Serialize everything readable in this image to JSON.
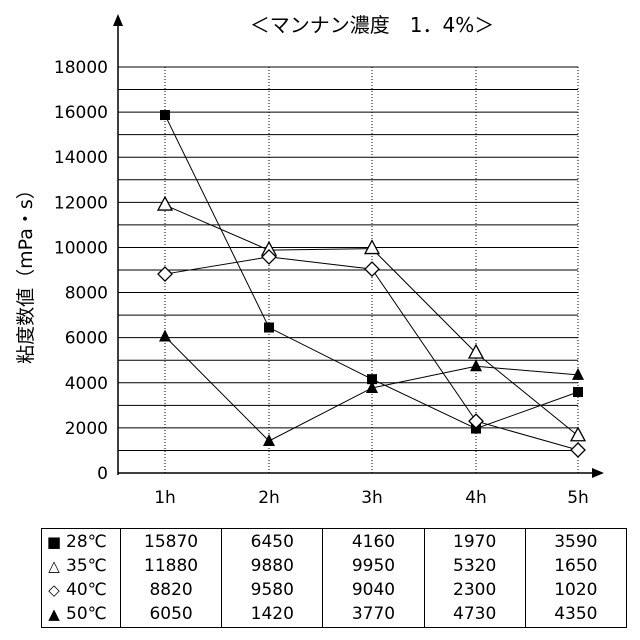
{
  "chart_data": {
    "type": "line",
    "title": "＜マンナン濃度　1．4%＞",
    "ylabel": "粘度数値（mPa・s）",
    "xlabel": "",
    "categories": [
      "1h",
      "2h",
      "3h",
      "4h",
      "5h"
    ],
    "ylim": [
      0,
      18000
    ],
    "yticks": [
      0,
      2000,
      4000,
      6000,
      8000,
      10000,
      12000,
      14000,
      16000,
      18000
    ],
    "grid": {
      "horizontal": "solid",
      "vertical": "dotted"
    },
    "series": [
      {
        "name": "28°C",
        "marker": "filled-square",
        "values": [
          15870,
          6450,
          4160,
          1970,
          3590
        ]
      },
      {
        "name": "35°C",
        "marker": "open-triangle",
        "values": [
          11880,
          9880,
          9950,
          5320,
          1650
        ]
      },
      {
        "name": "40°C",
        "marker": "open-diamond",
        "values": [
          8820,
          9580,
          9040,
          2300,
          1020
        ]
      },
      {
        "name": "50°C",
        "marker": "filled-triangle",
        "values": [
          6050,
          1420,
          3770,
          4730,
          4350
        ]
      }
    ]
  },
  "table": {
    "rows": [
      {
        "symbol": "■",
        "label": "28℃",
        "values": [
          "15870",
          "6450",
          "4160",
          "1970",
          "3590"
        ]
      },
      {
        "symbol": "△",
        "label": "35℃",
        "values": [
          "11880",
          "9880",
          "9950",
          "5320",
          "1650"
        ]
      },
      {
        "symbol": "◇",
        "label": "40℃",
        "values": [
          "8820",
          "9580",
          "9040",
          "2300",
          "1020"
        ]
      },
      {
        "symbol": "▲",
        "label": "50℃",
        "values": [
          "6050",
          "1420",
          "3770",
          "4730",
          "4350"
        ]
      }
    ]
  }
}
